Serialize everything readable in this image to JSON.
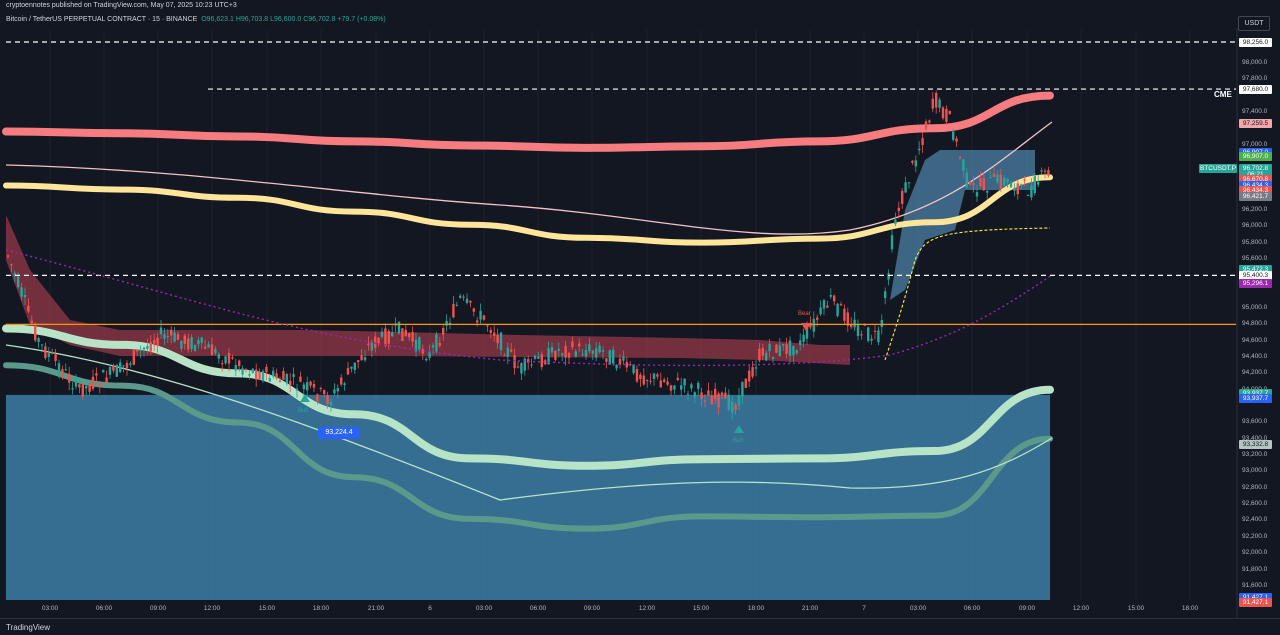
{
  "header": {
    "published": "cryptoennotes published on TradingView.com, May 07, 2025 10:23 UTC+3",
    "symbol": "Bitcoin / TetherUS PERPETUAL CONTRACT · 15 · BINANCE",
    "ohlc": "O96,623.1 H96,703.8 L96,600.0 C96,702.8 +79.7 (+0.08%)",
    "currency": "USDT"
  },
  "footer": {
    "brand": "TradingView"
  },
  "annotations": {
    "cme": "CME",
    "low_callout": "93,224.4",
    "bull": "Bull",
    "bear": "Bear"
  },
  "colors": {
    "background": "#131722",
    "up": "#26a69a",
    "down": "#ef5350",
    "upper_band": "#f77c80",
    "mid_band": "#ffe599",
    "lower_band": "#b7e4c7",
    "lower_band_dark": "#5b9a8b",
    "fill_blue": "#3d7ea6",
    "cloud_red": "#9c3a4a",
    "orange_line": "#ff9800",
    "purple_dotted": "#9c27b0"
  },
  "chart_data": {
    "type": "line",
    "y_axis_ticks": [
      "98,000.0",
      "97,800.0",
      "97,400.0",
      "97,000.0",
      "96,600.0",
      "96,200.0",
      "96,000.0",
      "95,800.0",
      "95,600.0",
      "95,000.0",
      "94,800.0",
      "94,600.0",
      "94,400.0",
      "94,200.0",
      "94,000.0",
      "93,600.0",
      "93,400.0",
      "93,200.0",
      "93,000.0",
      "92,800.0",
      "92,600.0",
      "92,400.0",
      "92,200.0",
      "92,000.0",
      "91,800.0",
      "91,600.0"
    ],
    "x_axis_ticks": [
      "03:00",
      "06:00",
      "09:00",
      "12:00",
      "15:00",
      "18:00",
      "21:00",
      "6",
      "03:00",
      "06:00",
      "09:00",
      "12:00",
      "15:00",
      "18:00",
      "21:00",
      "7",
      "03:00",
      "06:00",
      "09:00",
      "12:00",
      "15:00",
      "18:00"
    ],
    "price_labels": [
      {
        "text": "98,256.0",
        "bg": "#ffffff",
        "fg": "#131722",
        "price": 98256.0
      },
      {
        "text": "97,680.0",
        "bg": "#ffffff",
        "fg": "#131722",
        "price": 97680.0
      },
      {
        "text": "97,259.5",
        "bg": "#f4a7aa",
        "fg": "#131722",
        "price": 97259.5
      },
      {
        "text": "96,907.0",
        "bg": "#2962ff",
        "fg": "#ffffff",
        "price": 96907.0
      },
      {
        "text": "96,907.0",
        "bg": "#4caf50",
        "fg": "#ffffff",
        "price": 96857.0
      },
      {
        "text": "96,702.8",
        "bg": "#26a69a",
        "fg": "#ffffff",
        "price": 96702.8
      },
      {
        "text": "06:21",
        "bg": "#26a69a",
        "fg": "#ffffff",
        "price": 96640.0
      },
      {
        "text": "96,670.8",
        "bg": "#ef5350",
        "fg": "#ffffff",
        "price": 96570.0
      },
      {
        "text": "96,434.3",
        "bg": "#2962ff",
        "fg": "#ffffff",
        "price": 96500.0
      },
      {
        "text": "96,434.3",
        "bg": "#ef5350",
        "fg": "#ffffff",
        "price": 96434.3
      },
      {
        "text": "96,421.7",
        "bg": "#787b86",
        "fg": "#ffffff",
        "price": 96370.0
      },
      {
        "text": "95,472.3",
        "bg": "#26a69a",
        "fg": "#ffffff",
        "price": 95472.3
      },
      {
        "text": "95,400.3",
        "bg": "#ffffff",
        "fg": "#131722",
        "price": 95400.3
      },
      {
        "text": "95,296.1",
        "bg": "#9c27b0",
        "fg": "#ffffff",
        "price": 95296.1
      },
      {
        "text": "93,937.7",
        "bg": "#26a69a",
        "fg": "#ffffff",
        "price": 93950.0
      },
      {
        "text": "93,937.7",
        "bg": "#2962ff",
        "fg": "#ffffff",
        "price": 93890.0
      },
      {
        "text": "93,332.8",
        "bg": "#b7c4bf",
        "fg": "#131722",
        "price": 93332.8
      },
      {
        "text": "91,427.1",
        "bg": "#2962ff",
        "fg": "#ffffff",
        "price": 91460.0
      },
      {
        "text": "91,427.1",
        "bg": "#ef5350",
        "fg": "#ffffff",
        "price": 91400.0
      }
    ],
    "ticker_label": "BTCUSDT.P",
    "horizontal_levels": [
      98256.0,
      97680.0,
      95400.3
    ],
    "orange_level": 94800.0,
    "series": [
      {
        "color": "#f77c80",
        "values": [
          97160,
          97140,
          97100,
          97040,
          96990,
          96960,
          96980,
          97040,
          97200,
          97600
        ]
      },
      {
        "color": "#ffe599",
        "values": [
          96500,
          96450,
          96350,
          96180,
          96020,
          95860,
          95800,
          95850,
          96050,
          96600
        ]
      },
      {
        "color": "#b7e4c7",
        "values": [
          94750,
          94550,
          94200,
          93700,
          93160,
          93070,
          93150,
          93160,
          93250,
          94000
        ]
      },
      {
        "color": "#5b9a8b",
        "values": [
          94300,
          94050,
          93600,
          92930,
          92420,
          92300,
          92450,
          92440,
          92460,
          93400
        ]
      }
    ]
  }
}
